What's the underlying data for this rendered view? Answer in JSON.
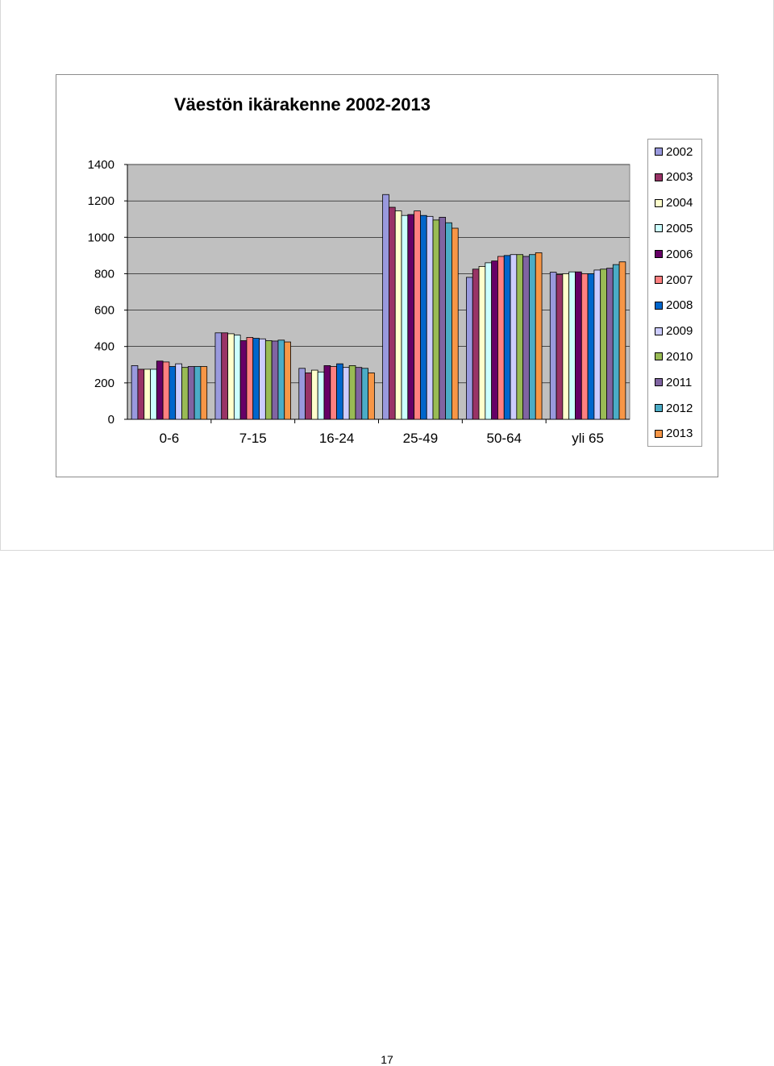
{
  "page": {
    "number": "17"
  },
  "colors": {
    "2002": "#9999dd",
    "2003": "#993366",
    "2004": "#ffffcc",
    "2005": "#ccffff",
    "2006": "#660066",
    "2007": "#ff8080",
    "2008": "#0066cc",
    "2009": "#ccccff",
    "2010": "#99bb55",
    "2011": "#8064a2",
    "2012": "#4bacc6",
    "2013": "#f79646"
  },
  "chart_data": {
    "type": "bar",
    "title": "Väestön ikärakenne 2002-2013",
    "xlabel": "",
    "ylabel": "",
    "ylim": [
      0,
      1400
    ],
    "yticks": [
      "0",
      "200",
      "400",
      "600",
      "800",
      "1000",
      "1200",
      "1400"
    ],
    "grid": true,
    "plot_background": "#c0c0c0",
    "legend_position": "right",
    "categories": [
      "0-6",
      "7-15",
      "16-24",
      "25-49",
      "50-64",
      "yli 65"
    ],
    "series": [
      {
        "name": "2002",
        "values": [
          295,
          475,
          280,
          1235,
          780,
          808
        ]
      },
      {
        "name": "2003",
        "values": [
          275,
          475,
          255,
          1165,
          825,
          795
        ]
      },
      {
        "name": "2004",
        "values": [
          275,
          470,
          270,
          1145,
          840,
          800
        ]
      },
      {
        "name": "2005",
        "values": [
          275,
          463,
          260,
          1120,
          860,
          810
        ]
      },
      {
        "name": "2006",
        "values": [
          320,
          432,
          295,
          1125,
          870,
          810
        ]
      },
      {
        "name": "2007",
        "values": [
          315,
          450,
          290,
          1145,
          895,
          800
        ]
      },
      {
        "name": "2008",
        "values": [
          290,
          445,
          305,
          1120,
          900,
          800
        ]
      },
      {
        "name": "2009",
        "values": [
          305,
          442,
          285,
          1115,
          905,
          820
        ]
      },
      {
        "name": "2010",
        "values": [
          285,
          432,
          295,
          1095,
          905,
          825
        ]
      },
      {
        "name": "2011",
        "values": [
          290,
          430,
          285,
          1110,
          895,
          830
        ]
      },
      {
        "name": "2012",
        "values": [
          290,
          435,
          280,
          1080,
          905,
          850
        ]
      },
      {
        "name": "2013",
        "values": [
          290,
          425,
          255,
          1050,
          915,
          865
        ]
      }
    ]
  }
}
